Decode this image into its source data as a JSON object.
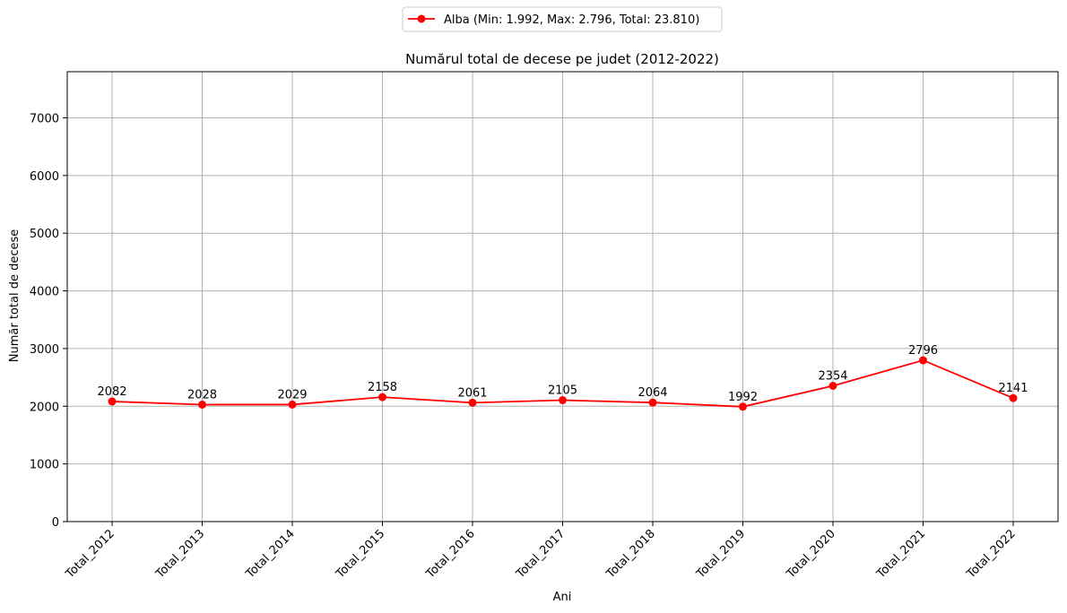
{
  "chart_data": {
    "type": "line",
    "title": "Numărul total de decese pe judet (2012-2022)",
    "xlabel": "Ani",
    "ylabel": "Număr total de decese",
    "categories": [
      "Total_2012",
      "Total_2013",
      "Total_2014",
      "Total_2015",
      "Total_2016",
      "Total_2017",
      "Total_2018",
      "Total_2019",
      "Total_2020",
      "Total_2021",
      "Total_2022"
    ],
    "series": [
      {
        "name": "Alba (Min: 1.992, Max: 2.796, Total: 23.810)",
        "values": [
          2082,
          2028,
          2029,
          2158,
          2061,
          2105,
          2064,
          1992,
          2354,
          2796,
          2141
        ],
        "color": "#ff0000",
        "marker": "circle"
      }
    ],
    "data_labels": [
      "2082",
      "2028",
      "2029",
      "2158",
      "2061",
      "2105",
      "2064",
      "1992",
      "2354",
      "2796",
      "2141"
    ],
    "ylim": [
      0,
      7800
    ],
    "yticks": [
      0,
      1000,
      2000,
      3000,
      4000,
      5000,
      6000,
      7000
    ],
    "ytick_labels": [
      "0",
      "1000",
      "2000",
      "3000",
      "4000",
      "5000",
      "6000",
      "7000"
    ],
    "grid": true,
    "legend_position": "top-center"
  }
}
